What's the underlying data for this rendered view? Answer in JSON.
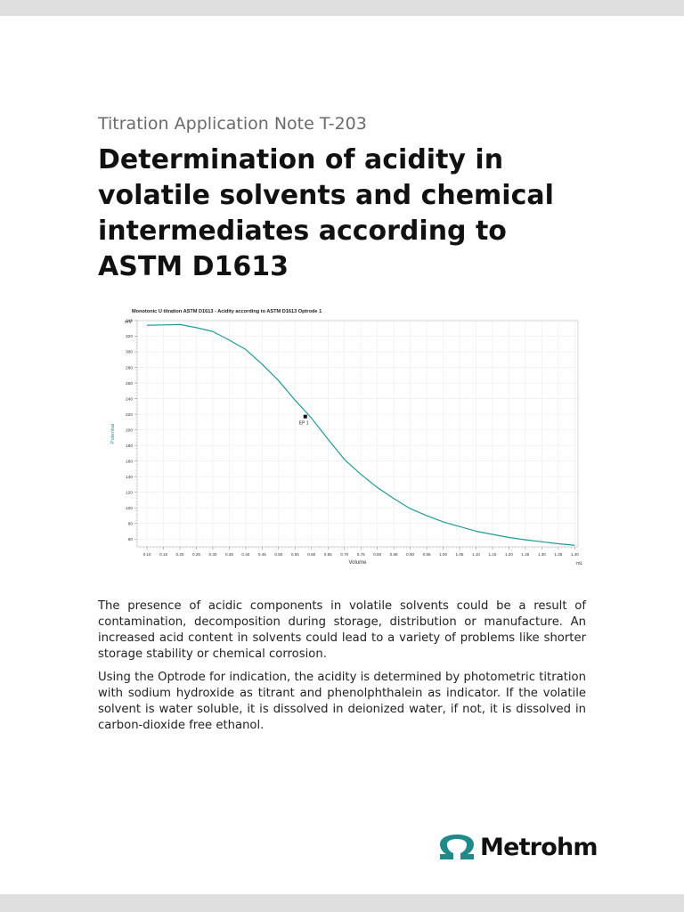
{
  "document": {
    "series": "Titration Application Note T-203",
    "title": "Determination of acidity in volatile solvents and chemical intermediates according to ASTM D1613",
    "paragraphs": [
      "The presence of acidic components in volatile solvents could be a result of contamination, decomposition during storage, distribution or manufacture. An increased acid content in solvents could lead to a variety of problems like shorter storage stability or chemical corrosion.",
      "Using the Optrode for indication, the acidity is determined by photometric titration with sodium hydroxide as titrant and phenolphthalein as indicator. If the volatile solvent is water soluble, it is dissolved in deionized water, if not, it is dissolved in carbon-dioxide free ethanol."
    ]
  },
  "logo": {
    "text": "Metrohm",
    "color": "#1f8a8a"
  },
  "chart_data": {
    "type": "line",
    "title": "Monotonic U titration ASTM D1613 - Acidity according to ASTM D1613 Optrode 1",
    "xlabel": "Volume",
    "x_unit": "mL",
    "ylabel": "Potential",
    "y_unit": "mV",
    "xlim": [
      0.07,
      1.41
    ],
    "ylim": [
      50,
      340
    ],
    "x_ticks": [
      "0.10",
      "0.15",
      "0.20",
      "0.25",
      "0.30",
      "0.35",
      "0.40",
      "0.45",
      "0.50",
      "0.55",
      "0.60",
      "0.65",
      "0.70",
      "0.75",
      "0.80",
      "0.85",
      "0.90",
      "0.95",
      "1.00",
      "1.05",
      "1.10",
      "1.15",
      "1.20",
      "1.25",
      "1.30",
      "1.35",
      "1.40"
    ],
    "y_ticks": [
      "60",
      "80",
      "100",
      "120",
      "140",
      "160",
      "180",
      "200",
      "220",
      "240",
      "260",
      "280",
      "300",
      "320",
      "340"
    ],
    "grid": true,
    "line_color": "#1f9a9a",
    "series": [
      {
        "x": [
          0.1,
          0.15,
          0.2,
          0.25,
          0.3,
          0.35,
          0.4,
          0.45,
          0.5,
          0.55,
          0.6,
          0.65,
          0.7,
          0.75,
          0.8,
          0.85,
          0.9,
          0.95,
          1.0,
          1.05,
          1.1,
          1.15,
          1.2,
          1.25,
          1.3,
          1.35,
          1.4
        ],
        "y": [
          334,
          334.5,
          335,
          331,
          326,
          315,
          303,
          284,
          263,
          238,
          215,
          188,
          162,
          143,
          126,
          112,
          99,
          90,
          82,
          76,
          70,
          66,
          62,
          59,
          56.5,
          54,
          52
        ]
      }
    ],
    "annotations": [
      {
        "label": "EP 1",
        "x": 0.581,
        "y": 217
      }
    ]
  }
}
